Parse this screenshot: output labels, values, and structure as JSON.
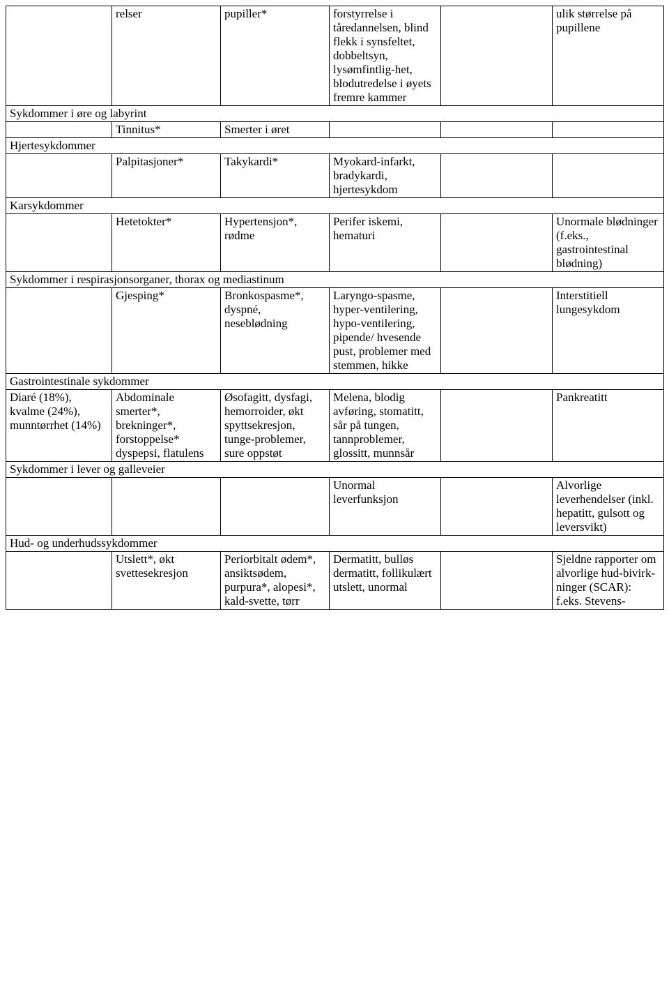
{
  "row0": {
    "c1": "",
    "c2": "relser",
    "c3": "pupiller*",
    "c4": "forstyrrelse i tåredannelsen, blind flekk i synsfeltet, dobbeltsyn, lysømfintlig-het, blodutredelse i øyets fremre kammer",
    "c5": "",
    "c6": "ulik størrelse på pupillene"
  },
  "h1": "Sykdommer i øre og labyrint",
  "row1": {
    "c1": "",
    "c2": "Tinnitus*",
    "c3": "Smerter i øret",
    "c4": "",
    "c5": "",
    "c6": ""
  },
  "h2": "Hjertesykdommer",
  "row2": {
    "c1": "",
    "c2": "Palpitasjoner*",
    "c3": "Takykardi*",
    "c4": "Myokard-infarkt, bradykardi, hjertesykdom",
    "c5": "",
    "c6": ""
  },
  "h3": "Karsykdommer",
  "row3": {
    "c1": "",
    "c2": "Hetetokter*",
    "c3": "Hypertensjon*, rødme",
    "c4": "Perifer iskemi, hematuri",
    "c5": "",
    "c6": "Unormale blødninger (f.eks., gastrointestinal blødning)"
  },
  "h4": "Sykdommer i respirasjonsorganer, thorax og mediastinum",
  "row4": {
    "c1": "",
    "c2": "Gjesping*",
    "c3": "Bronkospasme*, dyspné, neseblødning",
    "c4": "Laryngo-spasme, hyper-ventilering, hypo-ventilering, pipende/ hvesende pust, problemer med stemmen, hikke",
    "c5": "",
    "c6": "Interstitiell lungesykdom"
  },
  "h5": "Gastrointestinale sykdommer",
  "row5": {
    "c1": "Diaré (18%), kvalme (24%), munntørrhet (14%)",
    "c2": "Abdominale smerter*, brekninger*, forstoppelse* dyspepsi, flatulens",
    "c3": "Øsofagitt, dysfagi, hemorroider, økt spyttsekresjon, tunge-problemer, sure oppstøt",
    "c4": "Melena, blodig avføring, stomatitt, sår på tungen, tannproblemer, glossitt, munnsår",
    "c5": "",
    "c6": "Pankreatitt"
  },
  "h6": "Sykdommer i lever og galleveier",
  "row6": {
    "c1": "",
    "c2": "",
    "c3": "",
    "c4": "Unormal leverfunksjon",
    "c5": "",
    "c6": "Alvorlige leverhendelser (inkl. hepatitt, gulsott og leversvikt)"
  },
  "h7": "Hud- og underhudssykdommer",
  "row7": {
    "c1": "",
    "c2": "Utslett*, økt svettesekresjon",
    "c3": "Periorbitalt ødem*, ansiktsødem, purpura*, alopesi*, kald-svette, tørr",
    "c4": "Dermatitt, bulløs dermatitt, follikulært utslett, unormal",
    "c5": "",
    "c6": "Sjeldne rapporter om alvorlige hud-bivirk-ninger (SCAR): f.eks. Stevens-"
  }
}
